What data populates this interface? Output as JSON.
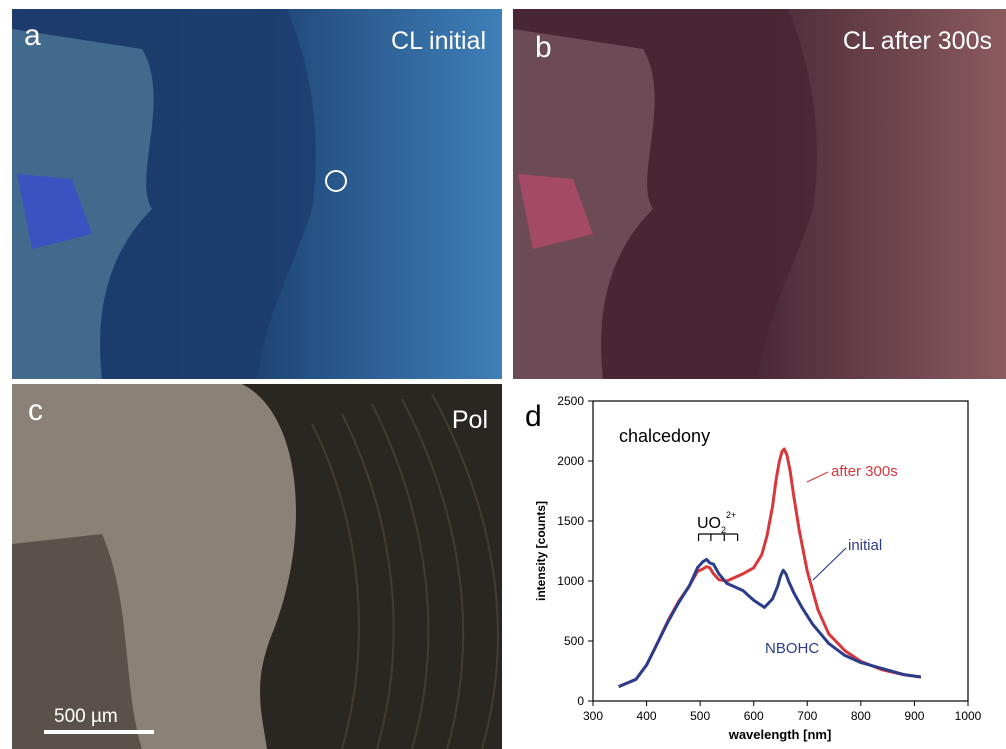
{
  "panels": {
    "a": {
      "letter": "a",
      "caption": "CL initial"
    },
    "b": {
      "letter": "b",
      "caption": "CL after 300s"
    },
    "c": {
      "letter": "c",
      "caption": "Pol",
      "scale_bar": "500 µm"
    },
    "d": {
      "letter": "d"
    }
  },
  "chart_data": {
    "type": "line",
    "title": "chalcedony",
    "xlabel": "wavelength [nm]",
    "ylabel": "intensity [counts]",
    "xlim": [
      300,
      1000
    ],
    "ylim": [
      0,
      2500
    ],
    "xticks": [
      300,
      400,
      500,
      600,
      700,
      800,
      900,
      1000
    ],
    "yticks": [
      0,
      500,
      1000,
      1500,
      2000,
      2500
    ],
    "grid": false,
    "series": [
      {
        "name": "initial",
        "color": "#2b3d8a",
        "x": [
          348,
          380,
          400,
          420,
          440,
          460,
          480,
          495,
          505,
          512,
          518,
          525,
          535,
          550,
          565,
          580,
          600,
          620,
          635,
          645,
          650,
          655,
          660,
          665,
          675,
          690,
          710,
          740,
          770,
          800,
          840,
          880,
          912
        ],
        "y": [
          120,
          180,
          300,
          480,
          660,
          820,
          960,
          1110,
          1160,
          1180,
          1150,
          1140,
          1060,
          980,
          950,
          920,
          840,
          780,
          850,
          960,
          1040,
          1090,
          1060,
          1000,
          900,
          780,
          640,
          480,
          380,
          320,
          270,
          220,
          200
        ]
      },
      {
        "name": "after 300s",
        "color": "#d8383c",
        "x": [
          348,
          380,
          400,
          420,
          440,
          460,
          480,
          495,
          505,
          512,
          518,
          525,
          535,
          550,
          565,
          580,
          600,
          615,
          625,
          635,
          642,
          648,
          653,
          657,
          662,
          668,
          675,
          685,
          700,
          720,
          740,
          770,
          800,
          840,
          880,
          912
        ],
        "y": [
          120,
          180,
          300,
          480,
          670,
          830,
          960,
          1080,
          1100,
          1120,
          1110,
          1060,
          1010,
          1000,
          1030,
          1060,
          1110,
          1220,
          1380,
          1620,
          1850,
          2000,
          2080,
          2100,
          2050,
          1920,
          1700,
          1420,
          1080,
          760,
          560,
          420,
          330,
          260,
          220,
          200
        ]
      }
    ],
    "annotations": [
      {
        "text": "after 300s",
        "color": "#d8383c"
      },
      {
        "text": "initial",
        "color": "#2b3d8a"
      },
      {
        "text": "NBOHC",
        "color": "#2b3d8a"
      }
    ],
    "uo2_label": {
      "base": "UO",
      "sub": "2",
      "sup": "2+"
    },
    "uo2_bracket_ticks_nm": [
      497,
      520,
      545,
      570
    ]
  }
}
